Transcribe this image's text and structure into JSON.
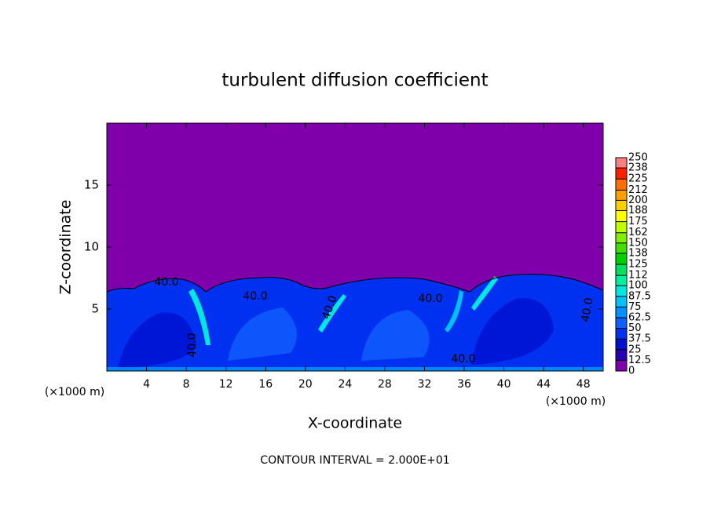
{
  "chart_data": {
    "type": "contour",
    "title": "turbulent diffusion coefficient",
    "x_label": "X-coordinate",
    "y_label": "Z-coordinate",
    "x_unit": "(×1000 m)",
    "y_unit": "(×1000 m)",
    "footer": "CONTOUR INTERVAL = 2.000E+01",
    "xlim": [
      0,
      50
    ],
    "ylim": [
      0,
      20
    ],
    "xticks": [
      4,
      8,
      12,
      16,
      20,
      24,
      28,
      32,
      36,
      40,
      44,
      48
    ],
    "yticks": [
      5,
      10,
      15
    ],
    "background_color": "#7f00aa",
    "contour_labels": [
      "40.0",
      "40.0",
      "40.0",
      "40.0",
      "40.0",
      "40.0",
      "40.0"
    ],
    "colorbar": {
      "levels": [
        0,
        12.5,
        25,
        37.5,
        50,
        62.5,
        75,
        87.5,
        100,
        112,
        125,
        138,
        150,
        162,
        175,
        188,
        200,
        212,
        225,
        238,
        250
      ],
      "colors": [
        "#7f00aa",
        "#2a00b0",
        "#0010d0",
        "#0030f0",
        "#1060ff",
        "#0090ff",
        "#00c0ff",
        "#00e8e0",
        "#00f0a0",
        "#00e060",
        "#00d000",
        "#40e000",
        "#80f000",
        "#c0ff00",
        "#ffff00",
        "#ffd000",
        "#ffa000",
        "#ff7000",
        "#ff2000",
        "#ff8080"
      ]
    }
  }
}
